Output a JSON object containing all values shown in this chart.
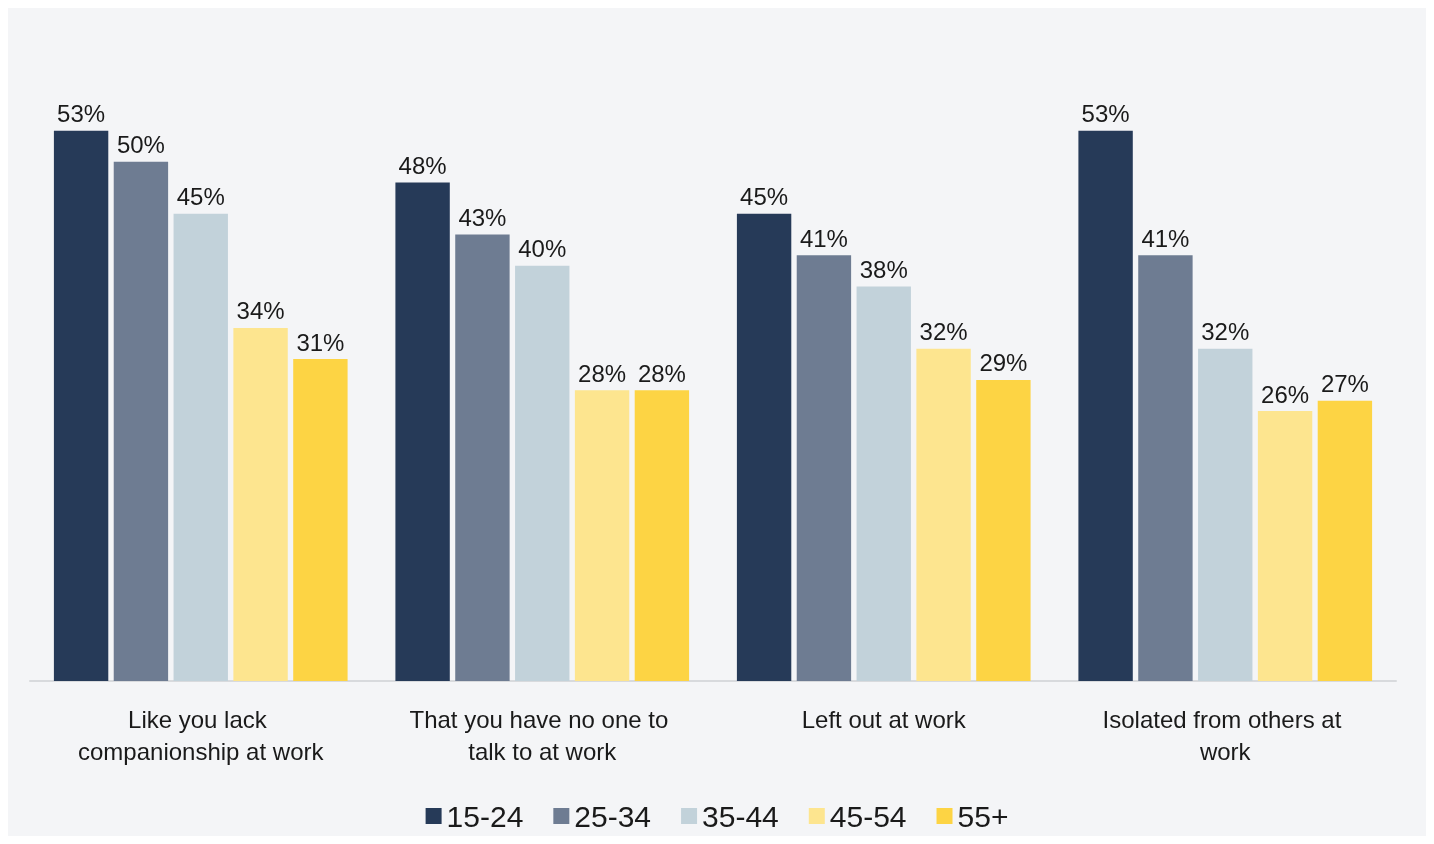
{
  "chart_data": {
    "type": "bar",
    "categories": [
      "Like you lack companionship at work",
      "That you have no one to talk to at work",
      "Left out at work",
      "Isolated from others at work"
    ],
    "series": [
      {
        "name": "15-24",
        "color": "#263a58",
        "values": [
          53,
          48,
          45,
          53
        ],
        "value_labels": [
          "53%",
          "48%",
          "45%",
          "53%"
        ]
      },
      {
        "name": "25-34",
        "color": "#6e7c92",
        "values": [
          50,
          43,
          41,
          41
        ],
        "value_labels": [
          "50%",
          "43%",
          "41%",
          "41%"
        ]
      },
      {
        "name": "35-44",
        "color": "#c2d2da",
        "values": [
          45,
          40,
          38,
          32
        ],
        "value_labels": [
          "45%",
          "40%",
          "38%",
          "32%"
        ]
      },
      {
        "name": "45-54",
        "color": "#fde58f",
        "values": [
          34,
          28,
          32,
          26
        ],
        "value_labels": [
          "34%",
          "28%",
          "32%",
          "26%"
        ]
      },
      {
        "name": "55+",
        "color": "#fdd444",
        "values": [
          31,
          28,
          29,
          27
        ],
        "value_labels": [
          "31%",
          "28%",
          "29%",
          "27%"
        ]
      }
    ],
    "legend": "bottom",
    "tick_labels": "x"
  }
}
